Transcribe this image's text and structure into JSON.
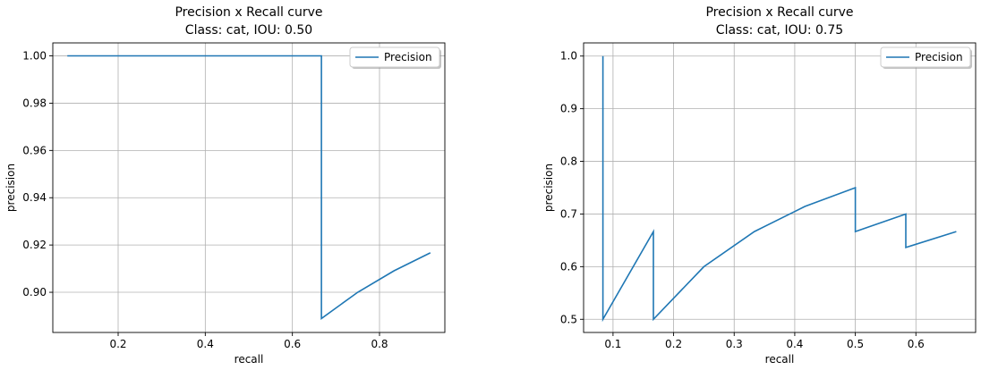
{
  "chart_data": [
    {
      "type": "line",
      "title": "Precision x Recall curve\nClass: cat, IOU: 0.50",
      "title_lines": [
        "Precision x Recall curve",
        "Class: cat, IOU: 0.50"
      ],
      "xlabel": "recall",
      "ylabel": "precision",
      "xlim": [
        0.05,
        0.95
      ],
      "ylim": [
        0.883,
        1.0055
      ],
      "xticks": [
        0.2,
        0.4,
        0.6,
        0.8
      ],
      "xtick_labels": [
        "0.2",
        "0.4",
        "0.6",
        "0.8"
      ],
      "yticks": [
        0.9,
        0.92,
        0.94,
        0.96,
        0.98,
        1.0
      ],
      "ytick_labels": [
        "0.90",
        "0.92",
        "0.94",
        "0.96",
        "0.98",
        "1.00"
      ],
      "grid": true,
      "legend_position": "top-right",
      "series": [
        {
          "name": "Precision",
          "color": "#1f77b4",
          "x": [
            0.0833,
            0.1667,
            0.25,
            0.3333,
            0.4167,
            0.5,
            0.5833,
            0.6667,
            0.6667,
            0.75,
            0.8333,
            0.9167
          ],
          "y": [
            1.0,
            1.0,
            1.0,
            1.0,
            1.0,
            1.0,
            1.0,
            1.0,
            0.8889,
            0.9,
            0.9091,
            0.9167
          ]
        }
      ]
    },
    {
      "type": "line",
      "title": "Precision x Recall curve\nClass: cat, IOU: 0.75",
      "title_lines": [
        "Precision x Recall curve",
        "Class: cat, IOU: 0.75"
      ],
      "xlabel": "recall",
      "ylabel": "precision",
      "xlim": [
        0.0514,
        0.6986
      ],
      "ylim": [
        0.475,
        1.025
      ],
      "xticks": [
        0.1,
        0.2,
        0.3,
        0.4,
        0.5,
        0.6
      ],
      "xtick_labels": [
        "0.1",
        "0.2",
        "0.3",
        "0.4",
        "0.5",
        "0.6"
      ],
      "yticks": [
        0.5,
        0.6,
        0.7,
        0.8,
        0.9,
        1.0
      ],
      "ytick_labels": [
        "0.5",
        "0.6",
        "0.7",
        "0.8",
        "0.9",
        "1.0"
      ],
      "grid": true,
      "legend_position": "top-right",
      "series": [
        {
          "name": "Precision",
          "color": "#1f77b4",
          "x": [
            0.0833,
            0.0833,
            0.1667,
            0.1667,
            0.25,
            0.3333,
            0.4167,
            0.5,
            0.5,
            0.5833,
            0.5833,
            0.6667
          ],
          "y": [
            1.0,
            0.5,
            0.6667,
            0.5,
            0.6,
            0.6667,
            0.7143,
            0.75,
            0.6667,
            0.7,
            0.6364,
            0.6667
          ]
        }
      ]
    }
  ]
}
